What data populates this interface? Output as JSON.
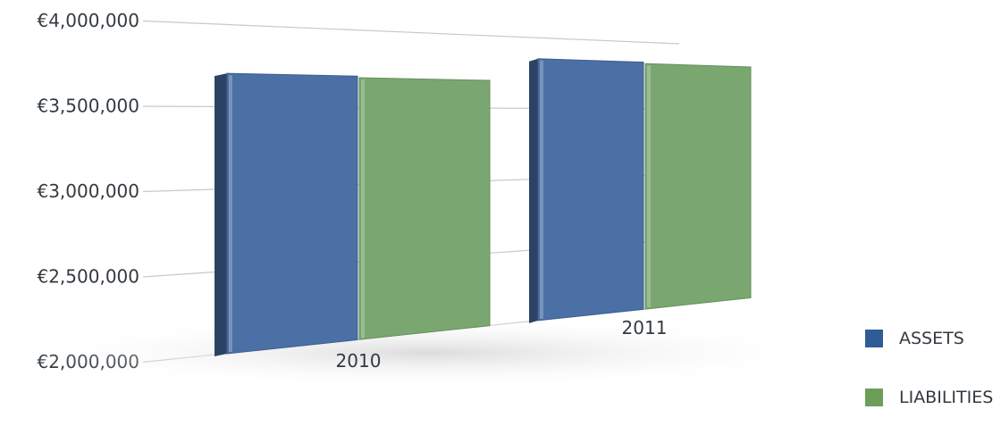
{
  "chart_data": {
    "type": "bar",
    "categories": [
      "2010",
      "2011"
    ],
    "series": [
      {
        "name": "ASSETS",
        "values": [
          3700000,
          3850000
        ],
        "color": "#4a70a6"
      },
      {
        "name": "LIABILITIES",
        "values": [
          3690000,
          3840000
        ],
        "color": "#7aa770"
      }
    ],
    "ylim": [
      2000000,
      4000000
    ],
    "yticks": [
      "€2,000,000",
      "€2,500,000",
      "€3,000,000",
      "€3,500,000",
      "€4,000,000"
    ],
    "grid": true,
    "legend_position": "bottom-right"
  }
}
